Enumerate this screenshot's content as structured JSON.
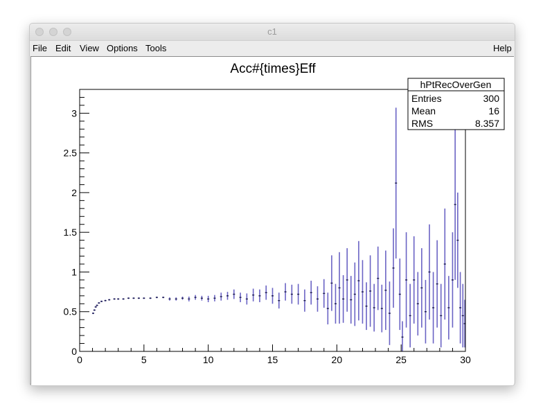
{
  "window": {
    "title": "c1"
  },
  "menus": {
    "file": "File",
    "edit": "Edit",
    "view": "View",
    "options": "Options",
    "tools": "Tools",
    "help": "Help"
  },
  "colors": {
    "errorbar": "#6a63c4",
    "marker": "#1a1a4a",
    "frame": "#000000"
  },
  "stats": {
    "name": "hPtRecOverGen",
    "rows": [
      {
        "label": "Entries",
        "value": "300"
      },
      {
        "label": "Mean",
        "value": "16"
      },
      {
        "label": "RMS",
        "value": "8.357"
      }
    ]
  },
  "chart_data": {
    "type": "scatter",
    "title": "Acc#{times}Eff",
    "xlabel": "",
    "ylabel": "",
    "xlim": [
      0,
      30
    ],
    "ylim": [
      0,
      3.3
    ],
    "xticks": [
      0,
      5,
      10,
      15,
      20,
      25,
      30
    ],
    "yticks": [
      0,
      0.5,
      1,
      1.5,
      2,
      2.5,
      3
    ],
    "x_tick_labels": [
      "0",
      "5",
      "10",
      "15",
      "20",
      "25",
      "30"
    ],
    "y_tick_labels": [
      "0",
      "0.5",
      "1",
      "1.5",
      "2",
      "2.5",
      "3"
    ],
    "grid": false,
    "series": [
      {
        "x": [
          1.05,
          1.15,
          1.25,
          1.35,
          1.5,
          1.7,
          2.0,
          2.3,
          2.7,
          3.0,
          3.4,
          3.8,
          4.2,
          4.6,
          5.0,
          5.5,
          6.0,
          6.5,
          7.0,
          7.5,
          8.0,
          8.5,
          9.0,
          9.5,
          10.0,
          10.5,
          11.0,
          11.5,
          12.0,
          12.5,
          13.0,
          13.5,
          14.0,
          14.5,
          15.0,
          15.5,
          16.0,
          16.5,
          17.0,
          17.5,
          18.0,
          18.5,
          19.0,
          19.3,
          19.6,
          19.9,
          20.2,
          20.5,
          20.8,
          21.1,
          21.4,
          21.7,
          22.0,
          22.3,
          22.6,
          22.9,
          23.2,
          23.5,
          23.8,
          24.1,
          24.4,
          24.6,
          24.9,
          25.1,
          25.4,
          25.7,
          26.0,
          26.3,
          26.6,
          26.9,
          27.2,
          27.5,
          27.8,
          28.1,
          28.4,
          28.7,
          29.0,
          29.2,
          29.4,
          29.6,
          29.8,
          29.95
        ],
        "y": [
          0.48,
          0.52,
          0.56,
          0.58,
          0.61,
          0.63,
          0.64,
          0.65,
          0.66,
          0.66,
          0.66,
          0.67,
          0.67,
          0.67,
          0.67,
          0.67,
          0.68,
          0.68,
          0.66,
          0.66,
          0.67,
          0.66,
          0.68,
          0.67,
          0.66,
          0.67,
          0.69,
          0.7,
          0.72,
          0.68,
          0.66,
          0.71,
          0.7,
          0.74,
          0.7,
          0.64,
          0.75,
          0.72,
          0.72,
          0.64,
          0.74,
          0.66,
          0.73,
          0.54,
          0.86,
          0.6,
          0.8,
          0.66,
          0.9,
          0.65,
          0.72,
          0.89,
          0.75,
          0.57,
          0.76,
          0.55,
          0.92,
          0.54,
          0.77,
          0.48,
          1.05,
          2.12,
          0.72,
          0.18,
          0.9,
          0.45,
          0.9,
          0.6,
          0.8,
          0.5,
          1.0,
          0.55,
          0.85,
          0.45,
          1.1,
          0.55,
          0.9,
          1.85,
          1.4,
          0.55,
          0.45,
          0.35
        ],
        "err": [
          0.01,
          0.01,
          0.01,
          0.01,
          0.01,
          0.01,
          0.01,
          0.01,
          0.01,
          0.01,
          0.01,
          0.01,
          0.01,
          0.01,
          0.01,
          0.01,
          0.01,
          0.01,
          0.02,
          0.02,
          0.02,
          0.03,
          0.03,
          0.03,
          0.04,
          0.04,
          0.05,
          0.05,
          0.06,
          0.06,
          0.07,
          0.08,
          0.08,
          0.09,
          0.1,
          0.1,
          0.11,
          0.12,
          0.13,
          0.14,
          0.15,
          0.16,
          0.18,
          0.2,
          0.35,
          0.25,
          0.45,
          0.3,
          0.4,
          0.3,
          0.4,
          0.5,
          0.4,
          0.3,
          0.45,
          0.3,
          0.4,
          0.3,
          0.5,
          0.4,
          0.5,
          0.95,
          0.45,
          0.2,
          0.6,
          0.4,
          0.55,
          0.4,
          0.5,
          0.4,
          0.6,
          0.45,
          0.55,
          0.4,
          0.7,
          0.4,
          0.6,
          0.95,
          0.6,
          0.45,
          0.4,
          0.3
        ]
      }
    ]
  }
}
